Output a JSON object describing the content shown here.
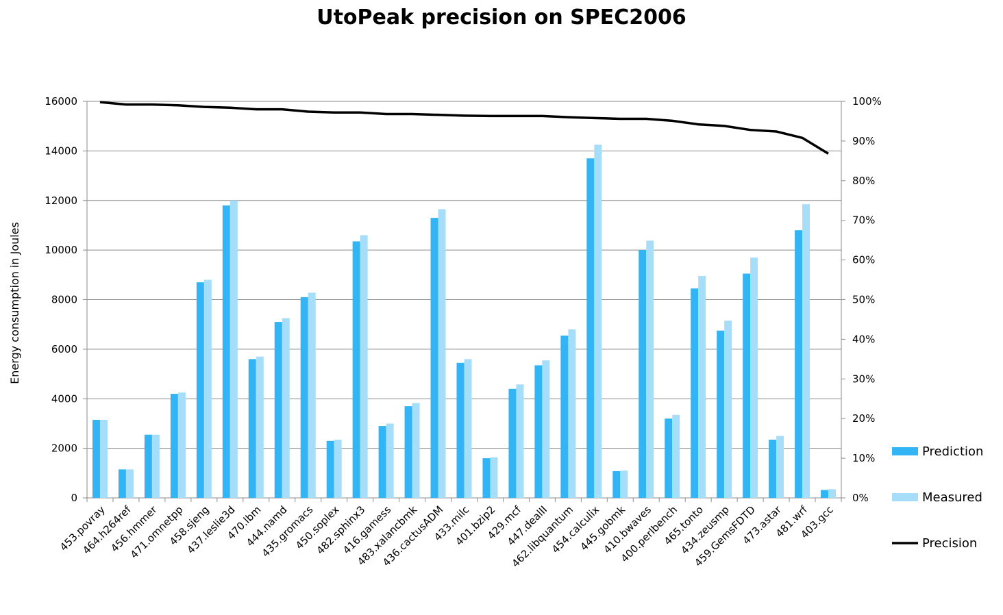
{
  "chart_data": {
    "type": "bar",
    "title": "UtoPeak precision on SPEC2006",
    "ylabel": "Energy consumption in Joules",
    "y2label": "",
    "ylim": [
      0,
      16000
    ],
    "y_ticks": [
      "0",
      "2000",
      "4000",
      "6000",
      "8000",
      "10000",
      "12000",
      "14000",
      "16000"
    ],
    "y2lim": [
      0,
      100
    ],
    "y2_ticks": [
      "0%",
      "10%",
      "20%",
      "30%",
      "40%",
      "50%",
      "60%",
      "70%",
      "80%",
      "90%",
      "100%"
    ],
    "grid": true,
    "legend_position": "right",
    "categories": [
      "453.povray",
      "464.h264ref",
      "456.hmmer",
      "471.omnetpp",
      "458.sjeng",
      "437.leslie3d",
      "470.lbm",
      "444.namd",
      "435.gromacs",
      "450.soplex",
      "482.sphinx3",
      "416.gamess",
      "483.xalancbmk",
      "436.cactusADM",
      "433.milc",
      "401.bzip2",
      "429.mcf",
      "447.dealII",
      "462.libquantum",
      "454.calculix",
      "445.gobmk",
      "410.bwaves",
      "400.perlbench",
      "465.tonto",
      "434.zeusmp",
      "459.GemsFDTD",
      "473.astar",
      "481.wrf",
      "403.gcc"
    ],
    "series": [
      {
        "name": "Prediction",
        "type": "bar",
        "axis": "left",
        "color": "#33b5f5",
        "values": [
          3150,
          1150,
          2550,
          4200,
          8700,
          11800,
          5600,
          7100,
          8100,
          2300,
          10350,
          2900,
          3700,
          11300,
          5450,
          1600,
          4400,
          5350,
          6550,
          13700,
          1080,
          10000,
          3200,
          8450,
          6750,
          9050,
          2350,
          10800,
          320
        ]
      },
      {
        "name": "Measured",
        "type": "bar",
        "axis": "left",
        "color": "#a6ddf9",
        "values": [
          3150,
          1150,
          2550,
          4250,
          8800,
          12000,
          5700,
          7250,
          8280,
          2350,
          10600,
          3000,
          3830,
          11650,
          5600,
          1640,
          4580,
          5550,
          6800,
          14250,
          1100,
          10380,
          3350,
          8950,
          7150,
          9700,
          2500,
          11850,
          350
        ]
      },
      {
        "name": "Precision",
        "type": "line",
        "axis": "right",
        "color": "#000000",
        "values": [
          99.8,
          99.2,
          99.2,
          99.0,
          98.6,
          98.4,
          98.0,
          98.0,
          97.4,
          97.2,
          97.2,
          96.8,
          96.8,
          96.6,
          96.4,
          96.3,
          96.3,
          96.3,
          96.0,
          95.8,
          95.6,
          95.6,
          95.1,
          94.2,
          93.8,
          92.8,
          92.4,
          90.8,
          86.8
        ]
      }
    ]
  }
}
